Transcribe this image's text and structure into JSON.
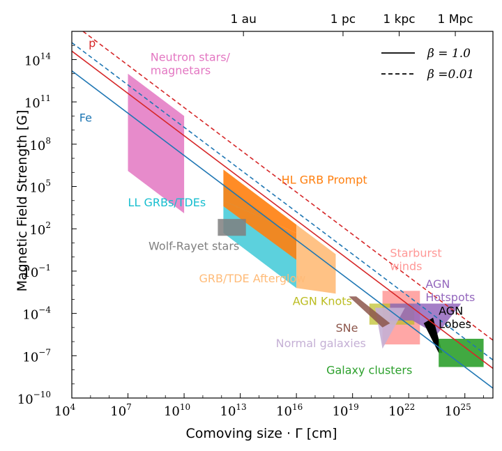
{
  "chart_data": {
    "type": "hillas_plot",
    "xlabel": "Comoving size · Γ [cm]",
    "ylabel": "Magnetic Field Strength [G]",
    "xlim_log10": [
      4,
      26.5
    ],
    "ylim_log10": [
      -10,
      16
    ],
    "x_ticks": [
      {
        "exp": 4,
        "label": "10",
        "sup": "4"
      },
      {
        "exp": 7,
        "label": "10",
        "sup": "7"
      },
      {
        "exp": 10,
        "label": "10",
        "sup": "10"
      },
      {
        "exp": 13,
        "label": "10",
        "sup": "13"
      },
      {
        "exp": 16,
        "label": "10",
        "sup": "16"
      },
      {
        "exp": 19,
        "label": "10",
        "sup": "19"
      },
      {
        "exp": 22,
        "label": "10",
        "sup": "22"
      },
      {
        "exp": 25,
        "label": "10",
        "sup": "25"
      }
    ],
    "y_ticks": [
      {
        "exp": -10,
        "label": "10",
        "sup": "−10"
      },
      {
        "exp": -7,
        "label": "10",
        "sup": "−7"
      },
      {
        "exp": -4,
        "label": "10",
        "sup": "−4"
      },
      {
        "exp": -1,
        "label": "10",
        "sup": "−1"
      },
      {
        "exp": 2,
        "label": "10",
        "sup": "2"
      },
      {
        "exp": 5,
        "label": "10",
        "sup": "5"
      },
      {
        "exp": 8,
        "label": "10",
        "sup": "8"
      },
      {
        "exp": 11,
        "label": "10",
        "sup": "11"
      },
      {
        "exp": 14,
        "label": "10",
        "sup": "14"
      }
    ],
    "top_ticks": [
      {
        "label": "1 au",
        "log10_cm": 13.17
      },
      {
        "label": "1 pc",
        "log10_cm": 18.49
      },
      {
        "label": "1 kpc",
        "log10_cm": 21.49
      },
      {
        "label": "1 Mpc",
        "log10_cm": 24.49
      }
    ],
    "lines": [
      {
        "name": "p β=1.0",
        "color": "#d62728",
        "dash": false,
        "x": [
          4,
          26.5
        ],
        "y": [
          14.6,
          -7.9
        ]
      },
      {
        "name": "p β=0.01",
        "color": "#d62728",
        "dash": true,
        "x": [
          4,
          26.5
        ],
        "y": [
          16.6,
          -5.9
        ]
      },
      {
        "name": "Fe β=1.0",
        "color": "#1f77b4",
        "dash": false,
        "x": [
          4,
          26.5
        ],
        "y": [
          13.2,
          -9.3
        ]
      },
      {
        "name": "Fe β=0.01",
        "color": "#1f77b4",
        "dash": true,
        "x": [
          4,
          26.5
        ],
        "y": [
          15.2,
          -7.3
        ]
      }
    ],
    "line_labels": [
      {
        "text": "p",
        "color": "#d62728",
        "x": 4.9,
        "y": 14.9
      },
      {
        "text": "Fe",
        "color": "#1f77b4",
        "x": 4.4,
        "y": 9.6
      }
    ],
    "regions": [
      {
        "name": "Neutron stars/magnetars",
        "color": "#e377c2",
        "alpha": 0.85,
        "points": [
          [
            7,
            13
          ],
          [
            10,
            10
          ],
          [
            10,
            3.1
          ],
          [
            7,
            6.1
          ]
        ]
      },
      {
        "name": "LL GRBs/TDEs",
        "color": "#17becf",
        "alpha": 0.7,
        "points": [
          [
            12.1,
            5.2
          ],
          [
            16,
            1.3
          ],
          [
            16,
            -2.2
          ],
          [
            12.1,
            1.7
          ]
        ]
      },
      {
        "name": "HL GRB Prompt",
        "color": "#ff7f0e",
        "alpha": 0.9,
        "points": [
          [
            12.1,
            4.0
          ],
          [
            16,
            1.7
          ],
          [
            16,
            -0.2
          ],
          [
            12.1,
            3.6
          ]
        ]
      },
      {
        "name": "HL GRB Prompt upper",
        "color": "#ff7f0e",
        "alpha": 0.9,
        "points": [
          [
            12.1,
            6.2
          ],
          [
            16,
            2.3
          ],
          [
            16,
            1.7
          ],
          [
            12.1,
            4.0
          ]
        ]
      },
      {
        "name": "GRB/TDE Afterglow",
        "color": "#ffbb78",
        "alpha": 0.9,
        "points": [
          [
            16,
            2.3
          ],
          [
            18.1,
            0.2
          ],
          [
            18.1,
            -2.6
          ],
          [
            16,
            -2.2
          ]
        ]
      },
      {
        "name": "Wolf-Rayet stars",
        "color": "#7f7f7f",
        "alpha": 0.85,
        "points": [
          [
            11.8,
            2.7
          ],
          [
            13.3,
            2.7
          ],
          [
            13.3,
            1.5
          ],
          [
            11.8,
            1.5
          ]
        ]
      },
      {
        "name": "Starburst winds",
        "color": "#ff9896",
        "alpha": 0.85,
        "points": [
          [
            20.6,
            -2.4
          ],
          [
            22.6,
            -2.4
          ],
          [
            22.6,
            -6.2
          ],
          [
            20.6,
            -6.2
          ]
        ]
      },
      {
        "name": "AGN Knots",
        "color": "#bcbd22",
        "alpha": 0.7,
        "points": [
          [
            19.9,
            -3.3
          ],
          [
            22.3,
            -3.3
          ],
          [
            22.3,
            -4.8
          ],
          [
            19.9,
            -4.8
          ]
        ]
      },
      {
        "name": "AGN Hotspots",
        "color": "#9467bd",
        "alpha": 0.85,
        "points": [
          [
            21.0,
            -3.3
          ],
          [
            24.8,
            -3.3
          ],
          [
            23.5,
            -5.5
          ],
          [
            22.2,
            -4.5
          ],
          [
            21.0,
            -4.5
          ]
        ]
      },
      {
        "name": "Normal galaxies",
        "color": "#c5b0d5",
        "alpha": 0.9,
        "points": [
          [
            20.2,
            -3.6
          ],
          [
            21.8,
            -3.6
          ],
          [
            20.6,
            -6.5
          ]
        ]
      },
      {
        "name": "SNe",
        "color": "#8c564b",
        "alpha": 0.85,
        "points": [
          [
            18.8,
            -2.8
          ],
          [
            19.2,
            -2.8
          ],
          [
            21.0,
            -4.7
          ],
          [
            20.6,
            -5.0
          ]
        ]
      },
      {
        "name": "AGN Lobes",
        "color": "#000000",
        "alpha": 1.0,
        "points": [
          [
            22.8,
            -4.7
          ],
          [
            23.3,
            -4.3
          ],
          [
            23.8,
            -6.8
          ],
          [
            23.6,
            -6.8
          ]
        ]
      },
      {
        "name": "Galaxy clusters",
        "color": "#2ca02c",
        "alpha": 0.9,
        "points": [
          [
            23.6,
            -5.8
          ],
          [
            26.0,
            -5.8
          ],
          [
            26.0,
            -7.8
          ],
          [
            23.6,
            -7.8
          ]
        ]
      }
    ],
    "annotations": [
      {
        "lines": [
          "Neutron stars/",
          "magnetars"
        ],
        "color": "#e377c2",
        "x": 8.2,
        "y": 13.9
      },
      {
        "lines": [
          "LL GRBs/TDEs"
        ],
        "color": "#17becf",
        "x": 7.0,
        "y": 3.6
      },
      {
        "lines": [
          "Wolf-Rayet stars"
        ],
        "color": "#7f7f7f",
        "x": 8.1,
        "y": 0.5
      },
      {
        "lines": [
          "HL GRB Prompt"
        ],
        "color": "#ff7f0e",
        "x": 15.2,
        "y": 5.2
      },
      {
        "lines": [
          "GRB/TDE Afterglow"
        ],
        "color": "#ffbb78",
        "x": 10.8,
        "y": -1.8
      },
      {
        "lines": [
          "Starburst",
          "winds"
        ],
        "color": "#ff9896",
        "x": 21.0,
        "y": 0.0
      },
      {
        "lines": [
          "AGN Knots"
        ],
        "color": "#bcbd22",
        "x": 15.8,
        "y": -3.4
      },
      {
        "lines": [
          "AGN",
          "Hotspots"
        ],
        "color": "#9467bd",
        "x": 22.9,
        "y": -2.2
      },
      {
        "lines": [
          "AGN",
          "Lobes"
        ],
        "color": "#000000",
        "x": 23.6,
        "y": -4.1
      },
      {
        "lines": [
          "SNe"
        ],
        "color": "#8c564b",
        "x": 18.1,
        "y": -5.3
      },
      {
        "lines": [
          "Normal galaxies"
        ],
        "color": "#c5b0d5",
        "x": 14.9,
        "y": -6.4
      },
      {
        "lines": [
          "Galaxy clusters"
        ],
        "color": "#2ca02c",
        "x": 17.6,
        "y": -8.3
      }
    ],
    "legend": [
      {
        "label": "β = 1.0",
        "dash": false
      },
      {
        "label": "β =0.01",
        "dash": true
      }
    ]
  }
}
